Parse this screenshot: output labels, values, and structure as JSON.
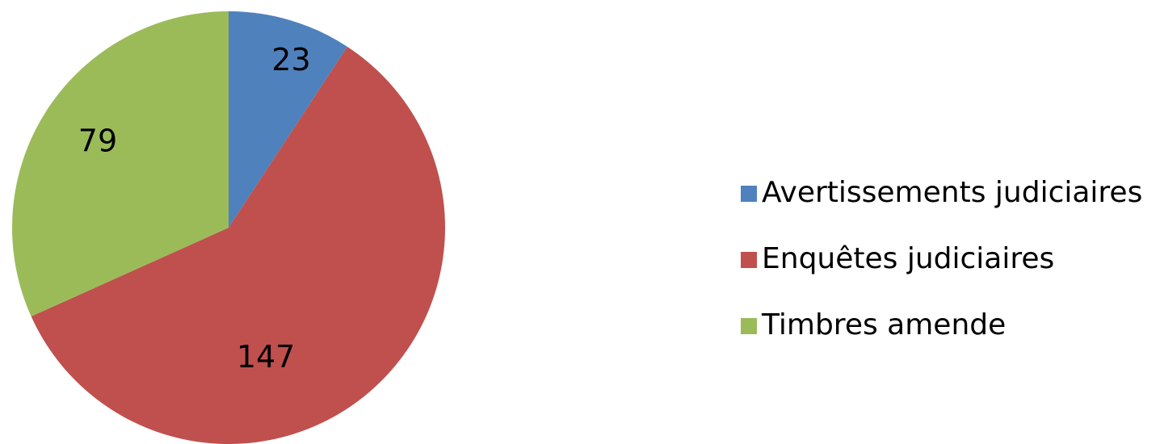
{
  "chart_data": {
    "type": "pie",
    "categories": [
      "Avertissements judiciaires",
      "Enquêtes judiciaires",
      "Timbres amende"
    ],
    "values": [
      23,
      147,
      79
    ],
    "colors": [
      "#4f81bd",
      "#c0504d",
      "#9bbb59"
    ],
    "start": "12 o'clock",
    "direction": "clockwise",
    "data_labels": [
      "23",
      "147",
      "79"
    ],
    "legend_position": "right"
  }
}
